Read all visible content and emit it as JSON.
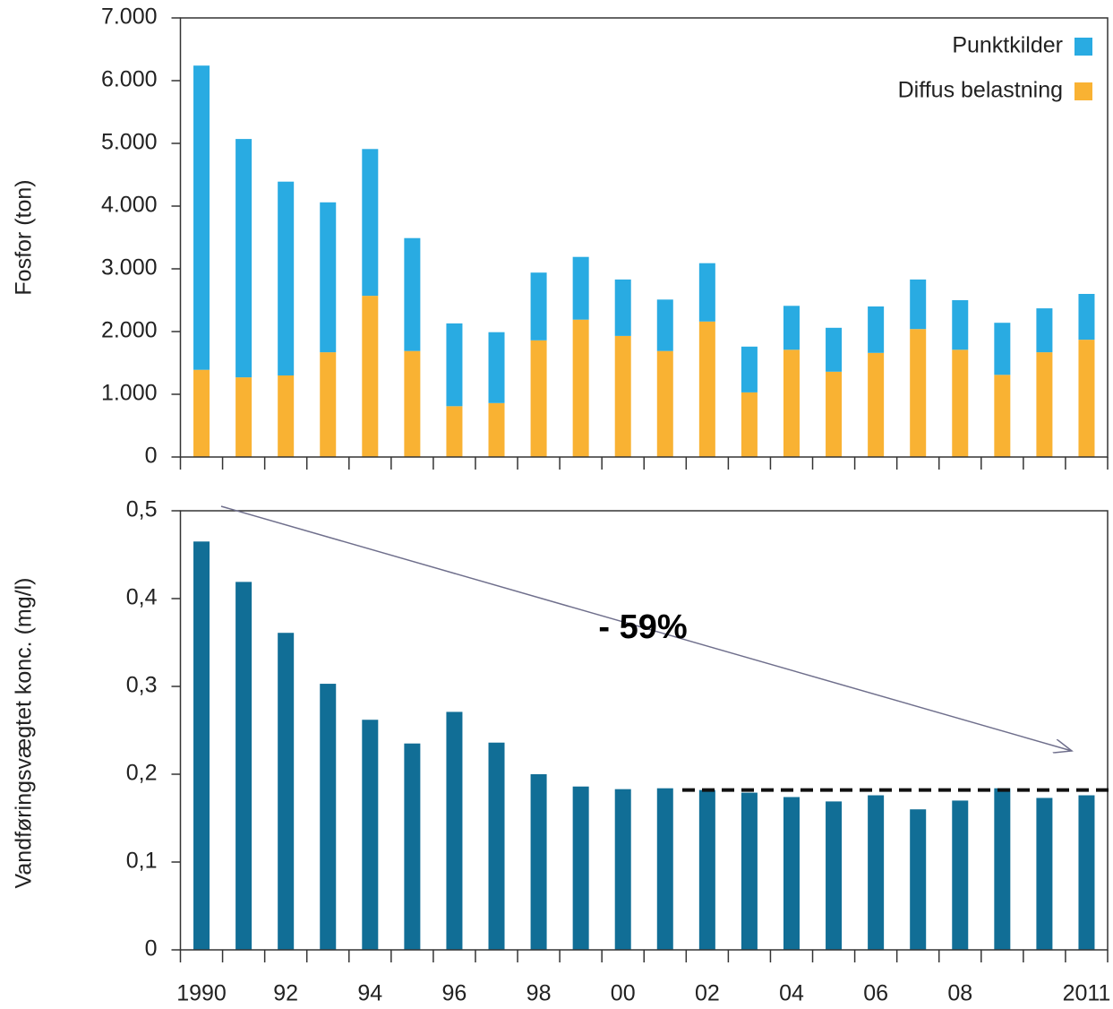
{
  "chart_data": [
    {
      "type": "stacked_bar",
      "ylabel": "Fosfor (ton)",
      "categories": [
        null,
        null,
        null,
        null,
        null,
        null,
        null,
        null,
        null,
        null,
        null,
        null,
        null,
        null,
        null,
        null,
        null,
        null,
        null,
        null,
        null,
        null
      ],
      "series": [
        {
          "name": "Punktkilder",
          "color": "#29abe2",
          "values": [
            4850,
            3800,
            3090,
            2390,
            2340,
            1800,
            1320,
            1130,
            1080,
            1000,
            900,
            820,
            930,
            730,
            700,
            700,
            740,
            790,
            790,
            830,
            700,
            730
          ]
        },
        {
          "name": "Diffus belastning",
          "color": "#f9b233",
          "values": [
            1390,
            1270,
            1300,
            1670,
            2570,
            1690,
            810,
            860,
            1860,
            2190,
            1930,
            1690,
            2160,
            1030,
            1710,
            1360,
            1660,
            2040,
            1710,
            1310,
            1670,
            1870
          ]
        }
      ],
      "ylim": [
        0,
        7000
      ],
      "yticks": [
        0,
        {
          "value": 1000,
          "label": "1.000"
        },
        {
          "value": 2000,
          "label": "2.000"
        },
        {
          "value": 3000,
          "label": "3.000"
        },
        {
          "value": 4000,
          "label": "4.000"
        },
        {
          "value": 5000,
          "label": "5.000"
        },
        {
          "value": 6000,
          "label": "6.000"
        },
        {
          "value": 7000,
          "label": "7.000"
        }
      ],
      "legend": "upper right"
    },
    {
      "type": "bar",
      "ylabel": "Vandføringsvægtet konc. (mg/l)",
      "categories": [
        "1990",
        null,
        "92",
        null,
        "94",
        null,
        "96",
        null,
        "98",
        null,
        "00",
        null,
        "02",
        null,
        "04",
        null,
        "06",
        null,
        "08",
        null,
        null,
        "2011"
      ],
      "values": [
        0.465,
        0.419,
        0.361,
        0.303,
        0.262,
        0.235,
        0.271,
        0.236,
        0.2,
        0.186,
        0.183,
        0.184,
        0.182,
        0.179,
        0.174,
        0.169,
        0.176,
        0.16,
        0.17,
        0.184,
        0.173,
        0.176
      ],
      "color": "#116e96",
      "ylim": [
        0,
        0.5
      ],
      "yticks": [
        0,
        {
          "value": 0.1,
          "label": "0,1"
        },
        {
          "value": 0.2,
          "label": "0,2"
        },
        {
          "value": 0.3,
          "label": "0,3"
        },
        {
          "value": 0.4,
          "label": "0,4"
        },
        {
          "value": 0.5,
          "label": "0,5"
        }
      ],
      "reference_line": 0.182,
      "annotation": "- 59%"
    }
  ]
}
